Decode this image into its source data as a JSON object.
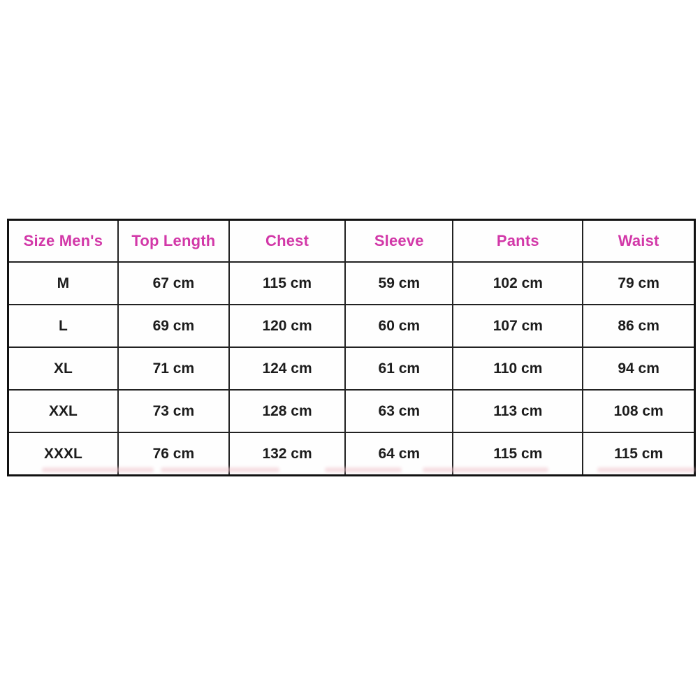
{
  "colors": {
    "header_text": "#d238a8",
    "body_text": "#1c1c1c",
    "border": "#1a1a1a",
    "background": "#ffffff"
  },
  "chart_data": {
    "type": "table",
    "title": "",
    "columns": [
      "Size Men's",
      "Top Length",
      "Chest",
      "Sleeve",
      "Pants",
      "Waist"
    ],
    "rows": [
      [
        "M",
        "67 cm",
        "115 cm",
        "59 cm",
        "102 cm",
        "79 cm"
      ],
      [
        "L",
        "69 cm",
        "120 cm",
        "60 cm",
        "107 cm",
        "86 cm"
      ],
      [
        "XL",
        "71 cm",
        "124 cm",
        "61 cm",
        "110 cm",
        "94 cm"
      ],
      [
        "XXL",
        "73 cm",
        "128 cm",
        "63 cm",
        "113 cm",
        "108 cm"
      ],
      [
        "XXXL",
        "76 cm",
        "132 cm",
        "64 cm",
        "115 cm",
        "115 cm"
      ]
    ]
  }
}
